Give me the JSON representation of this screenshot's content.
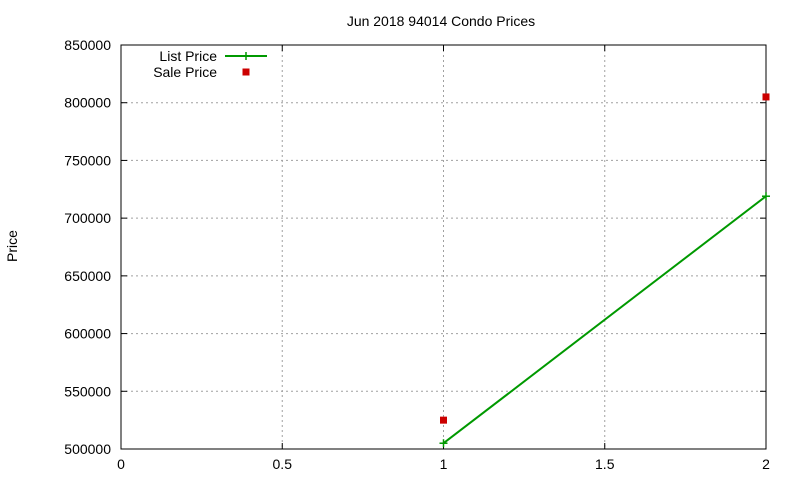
{
  "chart_data": {
    "type": "line",
    "title": "Jun 2018 94014 Condo Prices",
    "xlabel": "",
    "ylabel": "Price",
    "xlim": [
      0,
      2
    ],
    "ylim": [
      500000,
      850000
    ],
    "x_ticks": [
      "0",
      "0.5",
      "1",
      "1.5",
      "2"
    ],
    "y_ticks": [
      "500000",
      "550000",
      "600000",
      "650000",
      "700000",
      "750000",
      "800000",
      "850000"
    ],
    "grid": true,
    "legend_position": "top-left",
    "series": [
      {
        "name": "List Price",
        "style": "line-with-plus-markers",
        "color": "#009900",
        "points": [
          {
            "x": 1,
            "y": 505000
          },
          {
            "x": 2,
            "y": 719000
          }
        ]
      },
      {
        "name": "Sale Price",
        "style": "square-markers",
        "color": "#cc0000",
        "points": [
          {
            "x": 1,
            "y": 525000
          },
          {
            "x": 2,
            "y": 805000
          }
        ]
      }
    ]
  }
}
